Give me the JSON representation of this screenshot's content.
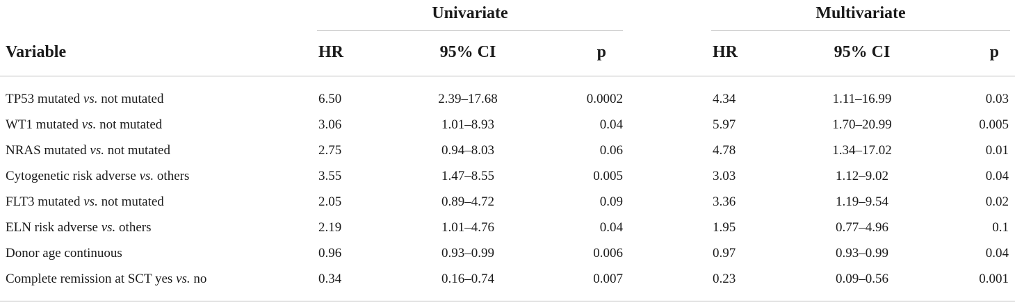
{
  "groups": {
    "univariate": "Univariate",
    "multivariate": "Multivariate"
  },
  "headers": {
    "variable": "Variable",
    "hr": "HR",
    "ci": "95% CI",
    "p": "p"
  },
  "vs_text": "vs.",
  "rows": [
    {
      "pre": "TP53 mutated",
      "post": "not mutated",
      "hr1": "6.50",
      "ci1": "2.39–17.68",
      "p1": "0.0002",
      "hr2": "4.34",
      "ci2": "1.11–16.99",
      "p2": "0.03"
    },
    {
      "pre": "WT1 mutated",
      "post": "not mutated",
      "hr1": "3.06",
      "ci1": "1.01–8.93",
      "p1": "0.04",
      "hr2": "5.97",
      "ci2": "1.70–20.99",
      "p2": "0.005"
    },
    {
      "pre": "NRAS mutated",
      "post": "not mutated",
      "hr1": "2.75",
      "ci1": "0.94–8.03",
      "p1": "0.06",
      "hr2": "4.78",
      "ci2": "1.34–17.02",
      "p2": "0.01"
    },
    {
      "pre": "Cytogenetic risk adverse",
      "post": "others",
      "hr1": "3.55",
      "ci1": "1.47–8.55",
      "p1": "0.005",
      "hr2": "3.03",
      "ci2": "1.12–9.02",
      "p2": "0.04"
    },
    {
      "pre": "FLT3 mutated",
      "post": "not mutated",
      "hr1": "2.05",
      "ci1": "0.89–4.72",
      "p1": "0.09",
      "hr2": "3.36",
      "ci2": "1.19–9.54",
      "p2": "0.02"
    },
    {
      "pre": "ELN risk adverse",
      "post": "others",
      "hr1": "2.19",
      "ci1": "1.01–4.76",
      "p1": "0.04",
      "hr2": "1.95",
      "ci2": "0.77–4.96",
      "p2": "0.1"
    },
    {
      "pre": "Donor age continuous",
      "post": "",
      "hr1": "0.96",
      "ci1": "0.93–0.99",
      "p1": "0.006",
      "hr2": "0.97",
      "ci2": "0.93–0.99",
      "p2": "0.04"
    },
    {
      "pre": "Complete remission at SCT yes",
      "post": "no",
      "hr1": "0.34",
      "ci1": "0.16–0.74",
      "p1": "0.007",
      "hr2": "0.23",
      "ci2": "0.09–0.56",
      "p2": "0.001"
    }
  ]
}
